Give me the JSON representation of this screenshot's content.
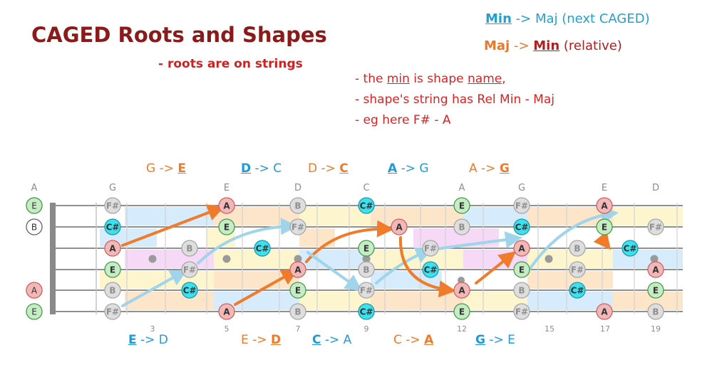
{
  "title": "CAGED Roots and Shapes",
  "subtitle": "- roots are on strings",
  "legend": {
    "line1": {
      "key": "Min",
      "arrow": " -> ",
      "rest": "Maj (next CAGED)"
    },
    "line2": {
      "key": "Maj",
      "arrow": " -> ",
      "key2": "Min",
      "rest": " (relative)"
    }
  },
  "notes": {
    "n1_a": "- the ",
    "n1_b": "min",
    "n1_c": " is shape ",
    "n1_d": "name",
    "n1_e": ",",
    "n2": "- shape's string has Rel Min - Maj",
    "n3": "- eg here F# - A"
  },
  "shape_labels_top": [
    {
      "text_a": "G -> ",
      "text_b": "E",
      "key_first": false,
      "color": "orange"
    },
    {
      "text_a": "D",
      "text_b": " -> C",
      "key_first": true,
      "color": "blue"
    },
    {
      "text_a": "D -> ",
      "text_b": "C",
      "key_first": false,
      "color": "orange"
    },
    {
      "text_a": "A",
      "text_b": " -> G",
      "key_first": true,
      "color": "blue"
    },
    {
      "text_a": "A -> ",
      "text_b": "G",
      "key_first": false,
      "color": "orange"
    }
  ],
  "shape_labels_bottom": [
    {
      "text_a": "E",
      "text_b": " -> D",
      "key_first": true,
      "color": "blue"
    },
    {
      "text_a": "E -> ",
      "text_b": "D",
      "key_first": false,
      "color": "orange"
    },
    {
      "text_a": "C",
      "text_b": " -> A",
      "key_first": true,
      "color": "blue"
    },
    {
      "text_a": "C -> ",
      "text_b": "A",
      "key_first": false,
      "color": "orange"
    },
    {
      "text_a": "G",
      "text_b": " -> E",
      "key_first": true,
      "color": "blue"
    }
  ],
  "colors": {
    "root_fill": "#f2b8b8",
    "root_stroke": "#d06060",
    "e_fill": "#c6ecc6",
    "e_stroke": "#4a9a4a",
    "cs_fill": "#3fe0ee",
    "cs_stroke": "#1a9aaa",
    "grey_fill": "#dedede",
    "grey_stroke": "#a6a6a6",
    "orange_arrow": "#f07b2b",
    "blue_arrow": "#9fd4ea",
    "band_blue": "#cfe8fb",
    "band_orange": "#fde0bf",
    "band_pink": "#f5d2f5",
    "band_yellow": "#fbf3c4"
  },
  "top_markers": [
    "A",
    "G",
    "E",
    "D",
    "C",
    "A",
    "G",
    "E",
    "D"
  ],
  "fret_numbers": [
    "3",
    "5",
    "7",
    "9",
    "12",
    "15",
    "17",
    "19"
  ],
  "open_strings": [
    "E",
    "B",
    "",
    "",
    "A",
    "E"
  ],
  "notes_on_board": [
    {
      "label": "F#",
      "kind": "grey"
    },
    {
      "label": "C#",
      "kind": "cs"
    },
    {
      "label": "A",
      "kind": "root"
    },
    {
      "label": "E",
      "kind": "e"
    },
    {
      "label": "B",
      "kind": "grey"
    },
    {
      "label": "F#",
      "kind": "grey"
    },
    {
      "label": "B",
      "kind": "grey"
    },
    {
      "label": "F#",
      "kind": "grey"
    },
    {
      "label": "C#",
      "kind": "cs"
    },
    {
      "label": "A",
      "kind": "root"
    },
    {
      "label": "E",
      "kind": "e"
    },
    {
      "label": "A",
      "kind": "root"
    },
    {
      "label": "B",
      "kind": "grey"
    },
    {
      "label": "F#",
      "kind": "grey"
    },
    {
      "label": "C#",
      "kind": "cs"
    },
    {
      "label": "A",
      "kind": "root"
    },
    {
      "label": "E",
      "kind": "e"
    },
    {
      "label": "B",
      "kind": "grey"
    },
    {
      "label": "C#",
      "kind": "cs"
    },
    {
      "label": "E",
      "kind": "e"
    },
    {
      "label": "B",
      "kind": "grey"
    },
    {
      "label": "F#",
      "kind": "grey"
    },
    {
      "label": "C#",
      "kind": "cs"
    },
    {
      "label": "A",
      "kind": "root"
    },
    {
      "label": "E",
      "kind": "e"
    },
    {
      "label": "B",
      "kind": "grey"
    },
    {
      "label": "F#",
      "kind": "grey"
    },
    {
      "label": "C#",
      "kind": "cs"
    },
    {
      "label": "A",
      "kind": "root"
    },
    {
      "label": "E",
      "kind": "e"
    },
    {
      "label": "F#",
      "kind": "grey"
    },
    {
      "label": "C#",
      "kind": "cs"
    },
    {
      "label": "A",
      "kind": "root"
    },
    {
      "label": "E",
      "kind": "e"
    },
    {
      "label": "B",
      "kind": "grey"
    },
    {
      "label": "F#",
      "kind": "grey"
    },
    {
      "label": "B",
      "kind": "grey"
    },
    {
      "label": "F#",
      "kind": "grey"
    },
    {
      "label": "C#",
      "kind": "cs"
    },
    {
      "label": "A",
      "kind": "root"
    },
    {
      "label": "E",
      "kind": "e"
    },
    {
      "label": "A",
      "kind": "root"
    },
    {
      "label": "C#",
      "kind": "cs"
    },
    {
      "label": "A",
      "kind": "root"
    },
    {
      "label": "E",
      "kind": "e"
    },
    {
      "label": "B",
      "kind": "grey"
    },
    {
      "label": "F#",
      "kind": "grey"
    },
    {
      "label": "A",
      "kind": "root"
    },
    {
      "label": "E",
      "kind": "e"
    },
    {
      "label": "B",
      "kind": "grey"
    }
  ]
}
